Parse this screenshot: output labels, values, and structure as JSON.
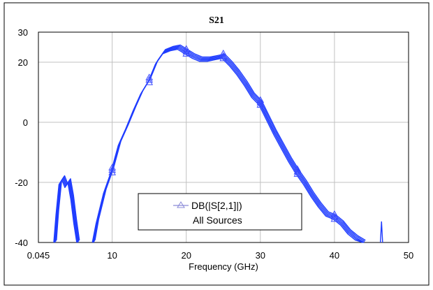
{
  "chart_data": {
    "type": "line",
    "title": "S21",
    "xlabel": "Frequency (GHz)",
    "ylabel": "",
    "xlim": [
      0.045,
      50
    ],
    "ylim": [
      -40,
      30
    ],
    "x_ticks": [
      "0.045",
      "10",
      "20",
      "30",
      "40",
      "50"
    ],
    "y_ticks": [
      "30",
      "20",
      "0",
      "-20",
      "-40"
    ],
    "grid": true,
    "legend": {
      "placement": "bottom-center",
      "entries": [
        "DB(|S[2,1]|)",
        "All Sources"
      ]
    },
    "colors": {
      "series": "#1f3cff",
      "marker": "#3c4cff",
      "legend_line": "#8a8ad8"
    },
    "series": [
      {
        "name": "DB(|S[2,1]|)",
        "x": [
          2.3,
          2.6,
          3.0,
          3.4,
          3.8,
          4.2,
          4.6,
          5.0,
          5.4,
          7.5,
          8.0,
          9.0,
          10.0,
          11.0,
          12.0,
          13.0,
          14.0,
          15.0,
          16.0,
          17.0,
          18.0,
          19.0,
          20.0,
          21.0,
          22.0,
          23.0,
          24.0,
          25.0,
          26.0,
          27.0,
          28.0,
          29.0,
          30.0,
          31.0,
          32.0,
          33.0,
          34.0,
          35.0,
          36.0,
          37.0,
          38.0,
          39.0,
          40.0,
          41.0,
          42.0,
          43.0,
          44.0
        ],
        "y": [
          -40.0,
          -30.0,
          -20.0,
          -18.5,
          -21.0,
          -19.5,
          -25.0,
          -33.0,
          -40.0,
          -40.0,
          -33.0,
          -23.0,
          -16.0,
          -7.0,
          -1.5,
          4.5,
          10.0,
          14.0,
          20.0,
          23.5,
          24.5,
          25.0,
          23.5,
          22.0,
          21.0,
          21.0,
          21.5,
          22.0,
          19.5,
          16.5,
          13.0,
          9.0,
          6.5,
          1.5,
          -3.5,
          -8.0,
          -12.5,
          -16.5,
          -20.0,
          -24.0,
          -27.5,
          -30.5,
          -31.5,
          -33.5,
          -36.5,
          -38.5,
          -40.0
        ]
      }
    ]
  }
}
